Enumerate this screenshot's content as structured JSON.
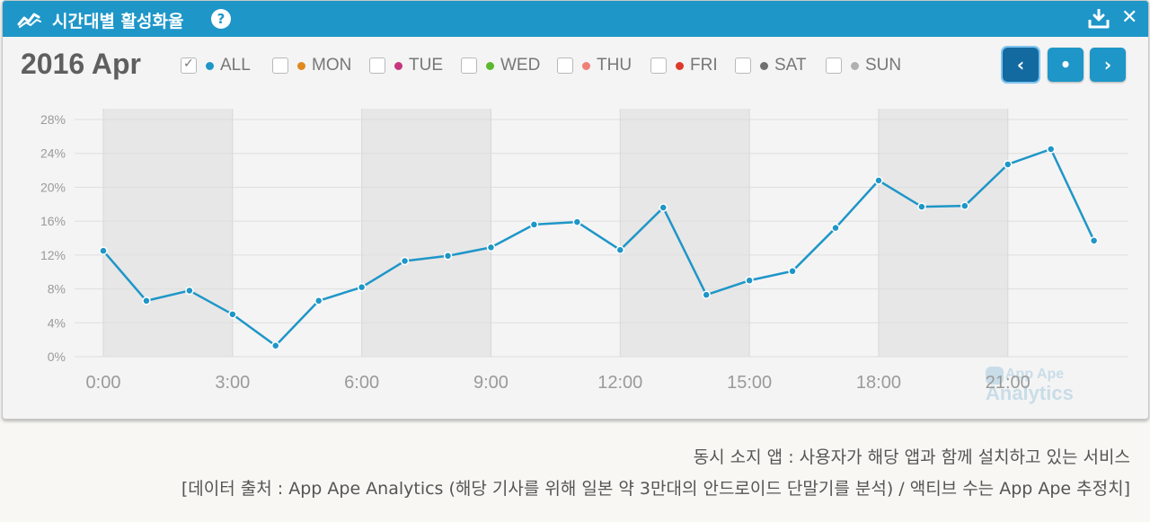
{
  "header": {
    "title": "시간대별 활성화율",
    "help_label": "?",
    "close_label": "✕"
  },
  "date_label": "2016 Apr",
  "legend": [
    {
      "label": "ALL",
      "color": "#1e96c8",
      "checked": true
    },
    {
      "label": "MON",
      "color": "#e0891e",
      "checked": false
    },
    {
      "label": "TUE",
      "color": "#c8367f",
      "checked": false
    },
    {
      "label": "WED",
      "color": "#5cb82e",
      "checked": false
    },
    {
      "label": "THU",
      "color": "#f07f78",
      "checked": false
    },
    {
      "label": "FRI",
      "color": "#dd3a2b",
      "checked": false
    },
    {
      "label": "SAT",
      "color": "#707070",
      "checked": false
    },
    {
      "label": "SUN",
      "color": "#b0b0b0",
      "checked": false
    }
  ],
  "nav": {
    "prev": "‹",
    "current": "•",
    "next": "›"
  },
  "watermark": {
    "line1": "App Ape",
    "line2": "Analytics"
  },
  "caption": {
    "line1": "동시 소지 앱 : 사용자가 해당 앱과 함께 설치하고 있는 서비스",
    "line2": "[데이터 출처 : App Ape Analytics (해당 기사를 위해 일본 약 3만대의 안드로이드 단말기를 분석) / 액티브 수는 App Ape 추정치]"
  },
  "chart_data": {
    "type": "line",
    "x": [
      0,
      1,
      2,
      3,
      4,
      5,
      6,
      7,
      8,
      9,
      10,
      11,
      12,
      13,
      14,
      15,
      16,
      17,
      18,
      19,
      20,
      21,
      22,
      23
    ],
    "x_tick_labels": [
      "0:00",
      "3:00",
      "6:00",
      "9:00",
      "12:00",
      "15:00",
      "18:00",
      "21:00"
    ],
    "x_tick_values": [
      0,
      3,
      6,
      9,
      12,
      15,
      18,
      21
    ],
    "y_tick_labels": [
      "0%",
      "4%",
      "8%",
      "12%",
      "16%",
      "20%",
      "24%",
      "28%"
    ],
    "y_tick_values": [
      0,
      4,
      8,
      12,
      16,
      20,
      24,
      28
    ],
    "ylim": [
      0,
      28
    ],
    "series": [
      {
        "values": [
          12.5,
          6.6,
          7.8,
          5.0,
          1.3,
          6.6,
          8.2,
          11.3,
          11.9,
          12.9,
          15.6,
          15.9,
          12.6,
          17.6,
          7.3,
          9.0,
          10.1,
          15.2,
          20.8,
          17.7,
          17.8,
          22.7,
          24.5,
          13.7
        ],
        "color": "#1e96c8"
      }
    ],
    "grid": true,
    "legend_position": "top"
  }
}
